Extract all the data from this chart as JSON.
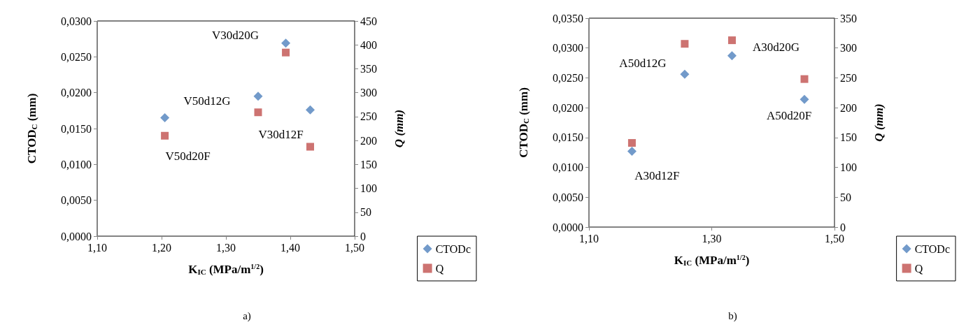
{
  "chart_data": [
    {
      "type": "scatter",
      "xlabel": "K$_{IC}$ (MPa/m$^{1/2}$)",
      "ylabel": "CTOD$_{C}$ (mm)",
      "y2label": "Q (mm)",
      "xlim": [
        1.1,
        1.5
      ],
      "xticks": [
        {
          "value": 1.1,
          "label": "1,10"
        },
        {
          "value": 1.2,
          "label": "1,20"
        },
        {
          "value": 1.3,
          "label": "1,30"
        },
        {
          "value": 1.4,
          "label": "1,40"
        },
        {
          "value": 1.5,
          "label": "1,50"
        }
      ],
      "ylim": [
        0,
        0.03
      ],
      "yticks": [
        {
          "value": 0,
          "label": "0,0000"
        },
        {
          "value": 0.005,
          "label": "0,0050"
        },
        {
          "value": 0.01,
          "label": "0,0100"
        },
        {
          "value": 0.015,
          "label": "0,0150"
        },
        {
          "value": 0.02,
          "label": "0,0200"
        },
        {
          "value": 0.025,
          "label": "0,0250"
        },
        {
          "value": 0.03,
          "label": "0,0300"
        }
      ],
      "y2lim": [
        0,
        450
      ],
      "y2ticks": [
        0,
        50,
        100,
        150,
        200,
        250,
        300,
        350,
        400,
        450
      ],
      "series": [
        {
          "name": "CTODc",
          "color": "#4f81bd",
          "marker": "diamond",
          "x": [
            1.205,
            1.35,
            1.393,
            1.431
          ],
          "values": [
            0.0165,
            0.0195,
            0.0269,
            0.0176
          ]
        },
        {
          "name": "Q",
          "color": "#c0504d",
          "marker": "square",
          "axis": "y2",
          "x": [
            1.205,
            1.35,
            1.393,
            1.431
          ],
          "values": [
            210,
            259,
            384,
            187
          ]
        }
      ],
      "annotations": [
        {
          "text": "V50d20F",
          "x": 1.205,
          "y": 0.0165
        },
        {
          "text": "V50d12G",
          "x": 1.35,
          "y": 0.0195
        },
        {
          "text": "V30d20G",
          "x": 1.393,
          "y": 0.0269
        },
        {
          "text": "V30d12F",
          "x": 1.431,
          "y": 0.0176
        },
        "a)"
      ],
      "legend": "bottom right",
      "grid": false
    },
    {
      "type": "scatter",
      "xlabel": "K$_{IC}$ (MPa/m$^{1/2}$)",
      "ylabel": "CTOD$_{C}$ (mm)",
      "y2label": "Q (mm)",
      "xlim": [
        1.1,
        1.5
      ],
      "xticks": [
        {
          "value": 1.1,
          "label": "1,10"
        },
        {
          "value": 1.3,
          "label": "1,30"
        },
        {
          "value": 1.5,
          "label": "1,50"
        }
      ],
      "ylim": [
        0,
        0.035
      ],
      "yticks": [
        {
          "value": 0,
          "label": "0,0000"
        },
        {
          "value": 0.005,
          "label": "0,0050"
        },
        {
          "value": 0.01,
          "label": "0,0100"
        },
        {
          "value": 0.015,
          "label": "0,0150"
        },
        {
          "value": 0.02,
          "label": "0,0200"
        },
        {
          "value": 0.025,
          "label": "0,0250"
        },
        {
          "value": 0.03,
          "label": "0,0300"
        },
        {
          "value": 0.035,
          "label": "0,0350"
        }
      ],
      "y2lim": [
        0,
        350
      ],
      "y2ticks": [
        0,
        50,
        100,
        150,
        200,
        250,
        300,
        350
      ],
      "series": [
        {
          "name": "CTODc",
          "color": "#4f81bd",
          "marker": "diamond",
          "x": [
            1.17,
            1.256,
            1.333,
            1.451
          ],
          "values": [
            0.0127,
            0.0256,
            0.0287,
            0.0214
          ]
        },
        {
          "name": "Q",
          "color": "#c0504d",
          "marker": "square",
          "axis": "y2",
          "x": [
            1.17,
            1.256,
            1.333,
            1.451
          ],
          "values": [
            141,
            307,
            313,
            248
          ]
        }
      ],
      "annotations": [
        {
          "text": "A30d12F",
          "x": 1.17,
          "y": 0.0127
        },
        {
          "text": "A50d12G",
          "x": 1.256,
          "y": 0.0256
        },
        {
          "text": "A30d20G",
          "x": 1.333,
          "y": 0.0287
        },
        {
          "text": "A50d20F",
          "x": 1.451,
          "y": 0.0214
        },
        "b)"
      ],
      "legend": "bottom right",
      "grid": false
    }
  ]
}
